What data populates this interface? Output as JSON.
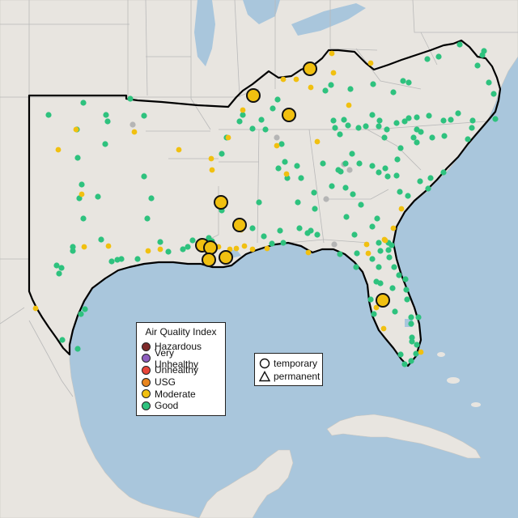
{
  "legend": {
    "title": "Air Quality Index",
    "categories": [
      {
        "label": "Hazardous",
        "color": "#7e2a2a"
      },
      {
        "label": "Very Unhealthy",
        "color": "#8e5fbf"
      },
      {
        "label": "Unhealthy",
        "color": "#e8463a"
      },
      {
        "label": "USG",
        "color": "#e8851e"
      },
      {
        "label": "Moderate",
        "color": "#f1c010"
      },
      {
        "label": "Good",
        "color": "#2ec27e"
      }
    ],
    "shapes": [
      {
        "label": "temporary",
        "icon": "circle-icon"
      },
      {
        "label": "permanent",
        "icon": "triangle-icon"
      }
    ]
  },
  "colors": {
    "water": "#a9c6dc",
    "land": "#e8e5e0",
    "region_outline": "#000000",
    "no_data": "#b5b5b5"
  }
}
